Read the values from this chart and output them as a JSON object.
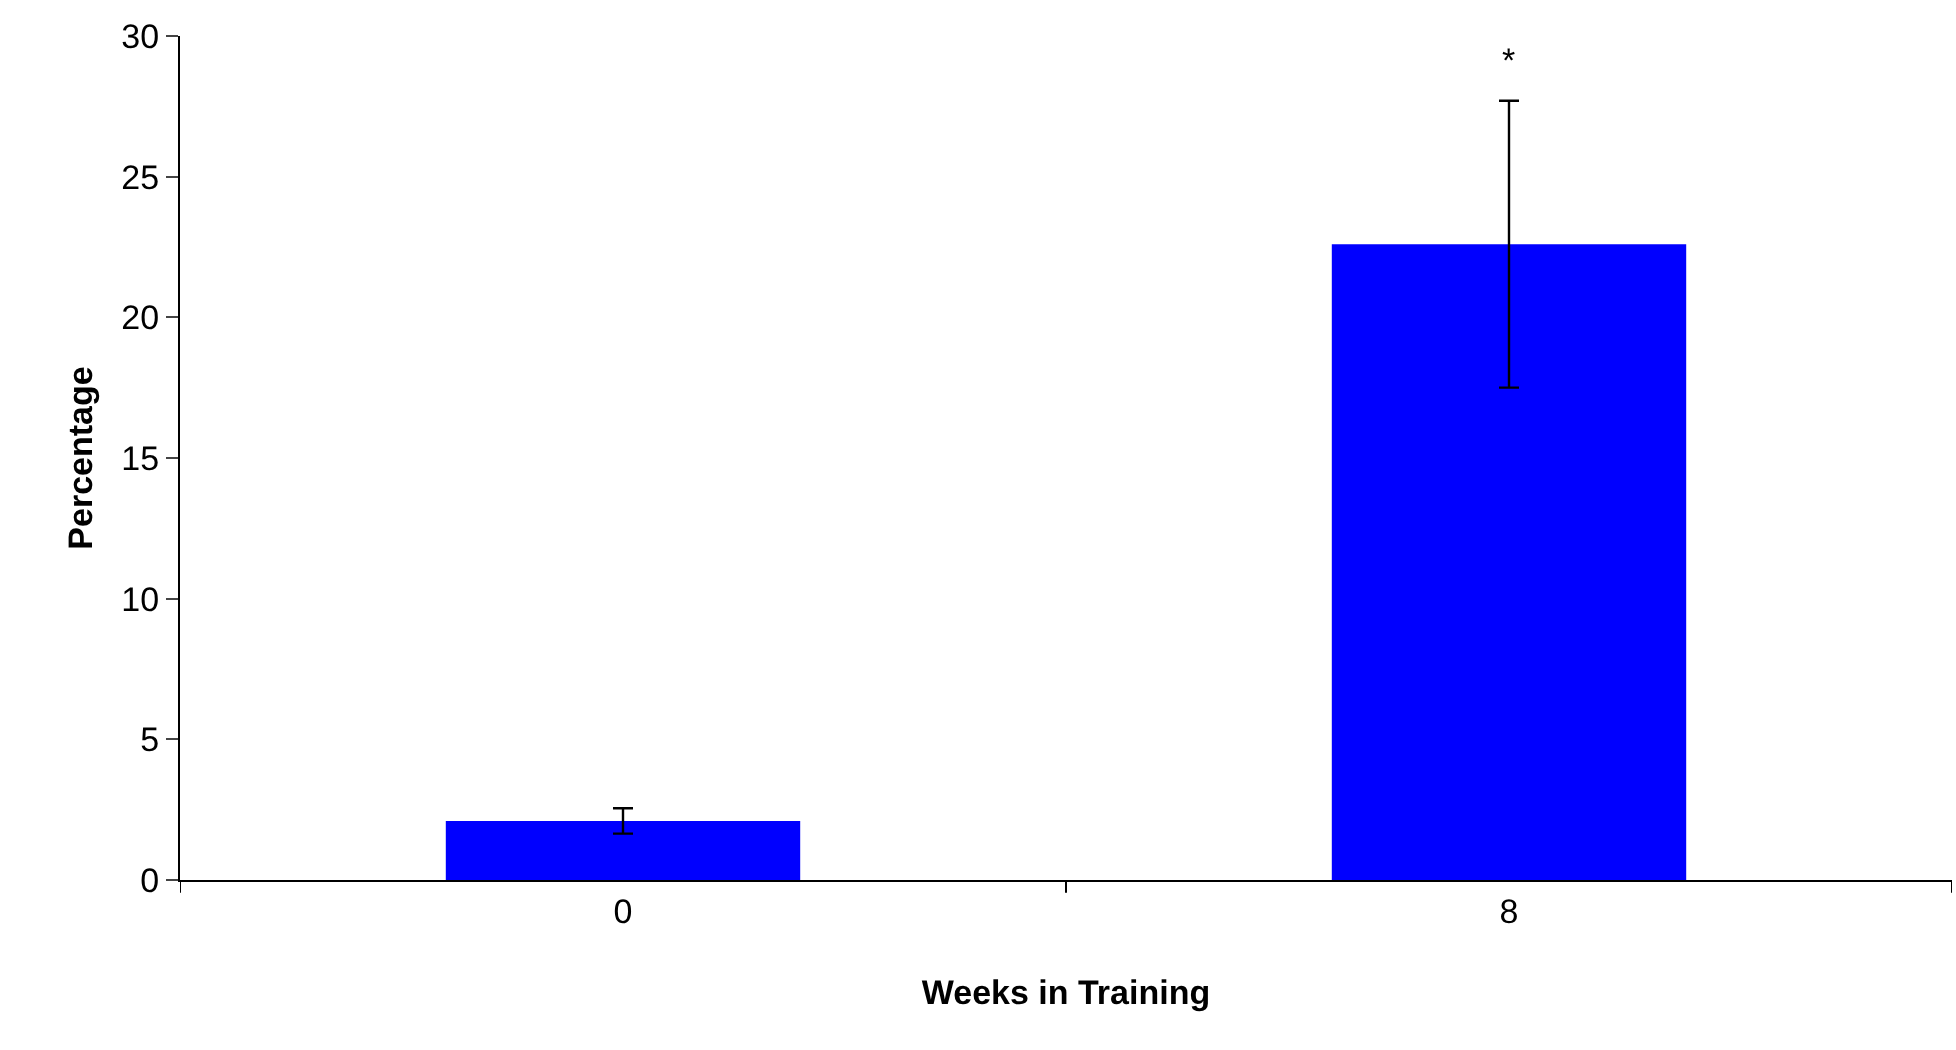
{
  "chart_data": {
    "type": "bar",
    "xlabel": "Weeks in Training",
    "ylabel": "Percentage",
    "categories": [
      "0",
      "8"
    ],
    "values": [
      2.1,
      22.6
    ],
    "errors": [
      0.45,
      5.1
    ],
    "color": "#0000ff",
    "ylim": [
      0,
      30
    ],
    "yticks": [
      0,
      5,
      10,
      15,
      20,
      25,
      30
    ],
    "annotations": [
      {
        "text": "*",
        "x": "8",
        "y": 27.7
      }
    ]
  }
}
